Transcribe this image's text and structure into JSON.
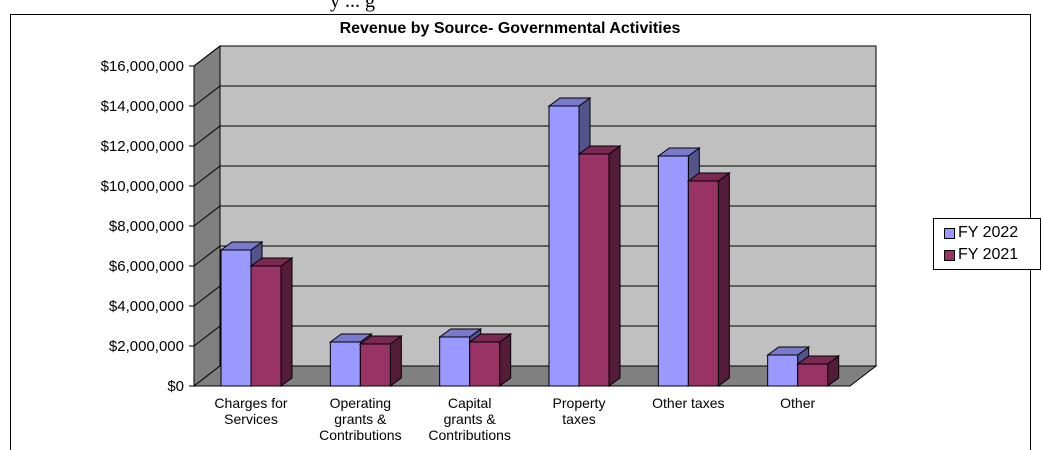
{
  "top_text": "y ... g",
  "chart_data": {
    "type": "bar",
    "title": "Revenue by Source- Governmental Activities",
    "categories": [
      "Charges for\nServices",
      "Operating\ngrants &\nContributions",
      "Capital\ngrants &\nContributions",
      "Property\ntaxes",
      "Other taxes",
      "Other"
    ],
    "series": [
      {
        "name": "FY 2022",
        "values": [
          6800000,
          2200000,
          2450000,
          14000000,
          11500000,
          1550000
        ],
        "color": "#9999ff"
      },
      {
        "name": "FY 2021",
        "values": [
          6000000,
          2100000,
          2200000,
          11600000,
          10250000,
          1100000
        ],
        "color": "#993366"
      }
    ],
    "ylim": [
      0,
      16000000
    ],
    "yticks": [
      "$0",
      "$2,000,000",
      "$4,000,000",
      "$6,000,000",
      "$8,000,000",
      "$10,000,000",
      "$12,000,000",
      "$14,000,000",
      "$16,000,000"
    ],
    "grid": true,
    "legend": "right",
    "background_color": "#c0c0c0",
    "floor_color": "#808080"
  }
}
